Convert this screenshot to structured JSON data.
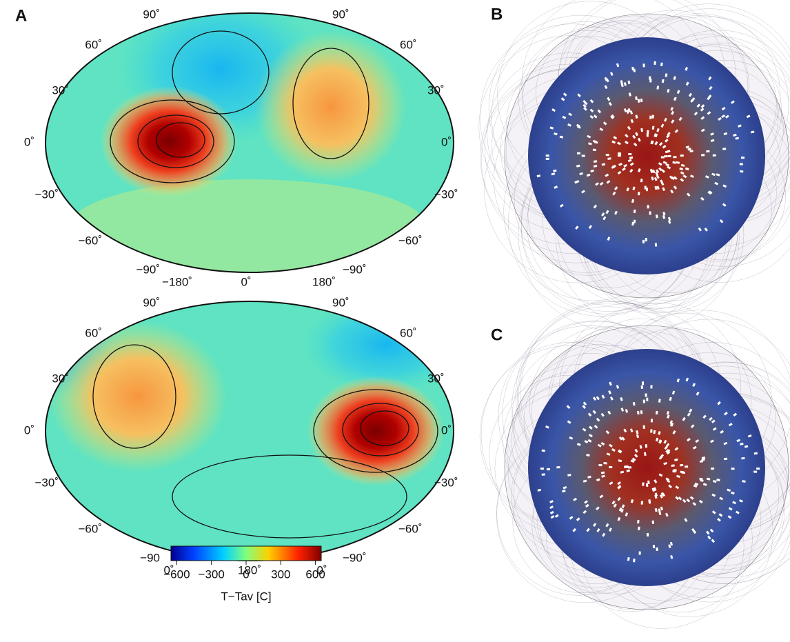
{
  "panels": [
    {
      "label": "A"
    },
    {
      "label": "B"
    },
    {
      "label": "C"
    }
  ],
  "maps": [
    {
      "lat_labels_left": [
        "90˚",
        "60˚",
        "30˚",
        "0˚",
        "−30˚",
        "−60˚",
        "−90˚"
      ],
      "lat_labels_right": [
        "90˚",
        "60˚",
        "30˚",
        "0˚",
        "−30˚",
        "−60˚",
        "−90˚"
      ],
      "lon_labels": [
        "−180˚",
        "0˚",
        "180˚"
      ]
    },
    {
      "lat_labels_left": [
        "90˚",
        "60˚",
        "30˚",
        "0˚",
        "−30˚",
        "−60˚",
        "−90"
      ],
      "lat_labels_right": [
        "90˚",
        "60˚",
        "30˚",
        "0˚",
        "−30˚",
        "−60˚",
        "−90˚"
      ],
      "lon_labels": [
        "0˚",
        "180˚",
        "0˚"
      ]
    }
  ],
  "colorbar": {
    "lim": [
      -650,
      650
    ],
    "ticks": [
      {
        "value": -600,
        "label": "−600"
      },
      {
        "value": -300,
        "label": "−300"
      },
      0,
      300,
      600
    ],
    "label": "T−Tav [C]"
  }
}
